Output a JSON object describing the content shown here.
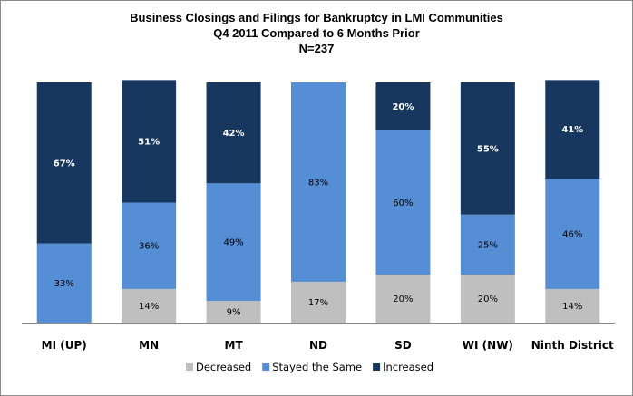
{
  "chart_data": {
    "type": "bar",
    "stacked": true,
    "title_lines": [
      "Business Closings and Filings for Bankruptcy  in LMI Communities",
      "Q4 2011 Compared to 6 Months Prior",
      "N=237"
    ],
    "categories": [
      "MI (UP)",
      "MN",
      "MT",
      "ND",
      "SD",
      "WI (NW)",
      "Ninth District"
    ],
    "series": [
      {
        "name": "Decreased",
        "color": "#bfbfbf",
        "values": [
          0,
          14,
          9,
          17,
          20,
          20,
          14
        ],
        "labels": [
          "",
          "14%",
          "9%",
          "17%",
          "20%",
          "20%",
          "14%"
        ]
      },
      {
        "name": "Stayed the Same",
        "color": "#558ed5",
        "values": [
          33,
          36,
          49,
          83,
          60,
          25,
          46
        ],
        "labels": [
          "33%",
          "36%",
          "49%",
          "83%",
          "60%",
          "25%",
          "46%"
        ]
      },
      {
        "name": "Increased",
        "color": "#17375e",
        "values": [
          67,
          51,
          42,
          0,
          20,
          55,
          41
        ],
        "labels": [
          "67%",
          "51%",
          "42%",
          "",
          "20%",
          "55%",
          "41%"
        ]
      }
    ],
    "ylim": [
      0,
      100
    ],
    "xlabel": "",
    "ylabel": "",
    "grid": false,
    "legend_position": "bottom"
  }
}
